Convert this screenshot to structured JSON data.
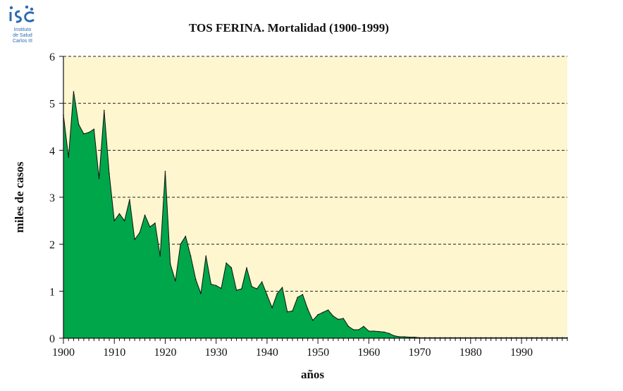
{
  "logo": {
    "line1": "Instituto",
    "line2": "de Salud",
    "line3": "Carlos III",
    "icon": "isciii-logo-icon"
  },
  "colors": {
    "plot_background": "#fdf6cf",
    "area_fill": "#00a64a",
    "area_stroke": "#111111",
    "logo_blue": "#2b6cb0"
  },
  "chart_data": {
    "type": "area",
    "title": "TOS FERINA. Mortalidad (1900-1999)",
    "xlabel": "años",
    "ylabel": "miles de casos",
    "xlim": [
      1900,
      1999
    ],
    "ylim": [
      0,
      6
    ],
    "grid": "horizontal-dashed",
    "x_ticks": [
      1900,
      1910,
      1920,
      1930,
      1940,
      1950,
      1960,
      1970,
      1980,
      1990
    ],
    "y_ticks": [
      0,
      1,
      2,
      3,
      4,
      5,
      6
    ],
    "series": [
      {
        "x": [
          1900,
          1901,
          1902,
          1903,
          1904,
          1905,
          1906,
          1907,
          1908,
          1909,
          1910,
          1911,
          1912,
          1913,
          1914,
          1915,
          1916,
          1917,
          1918,
          1919,
          1920,
          1921,
          1922,
          1923,
          1924,
          1925,
          1926,
          1927,
          1928,
          1929,
          1930,
          1931,
          1932,
          1933,
          1934,
          1935,
          1936,
          1937,
          1938,
          1939,
          1940,
          1941,
          1942,
          1943,
          1944,
          1945,
          1946,
          1947,
          1948,
          1949,
          1950,
          1951,
          1952,
          1953,
          1954,
          1955,
          1956,
          1957,
          1958,
          1959,
          1960,
          1961,
          1962,
          1963,
          1964,
          1965,
          1966,
          1967,
          1968,
          1969,
          1970,
          1971,
          1972,
          1973,
          1974,
          1975,
          1976,
          1977,
          1978,
          1979,
          1980,
          1981,
          1982,
          1983,
          1984,
          1985,
          1986,
          1987,
          1988,
          1989,
          1990,
          1991,
          1992,
          1993,
          1994,
          1995,
          1996,
          1997,
          1998,
          1999
        ],
        "values": [
          4.75,
          3.85,
          5.25,
          4.55,
          4.35,
          4.38,
          4.45,
          3.4,
          4.85,
          3.5,
          2.5,
          2.65,
          2.5,
          2.95,
          2.1,
          2.25,
          2.62,
          2.37,
          2.45,
          1.75,
          3.55,
          1.58,
          1.22,
          2.0,
          2.17,
          1.75,
          1.25,
          0.95,
          1.75,
          1.15,
          1.12,
          1.06,
          1.6,
          1.5,
          1.02,
          1.05,
          1.5,
          1.1,
          1.05,
          1.2,
          0.92,
          0.65,
          0.95,
          1.08,
          0.56,
          0.58,
          0.87,
          0.93,
          0.62,
          0.38,
          0.5,
          0.55,
          0.6,
          0.47,
          0.4,
          0.42,
          0.25,
          0.18,
          0.18,
          0.25,
          0.15,
          0.15,
          0.14,
          0.13,
          0.1,
          0.05,
          0.03,
          0.03,
          0.02,
          0.02,
          0.01,
          0.01,
          0.01,
          0.01,
          0.01,
          0.01,
          0.01,
          0.01,
          0.01,
          0.01,
          0.01,
          0.01,
          0.01,
          0.01,
          0.01,
          0.01,
          0.01,
          0.01,
          0.01,
          0.01,
          0.01,
          0.01,
          0.01,
          0.01,
          0.01,
          0.01,
          0.01,
          0.01,
          0.01,
          0.01
        ]
      }
    ]
  }
}
